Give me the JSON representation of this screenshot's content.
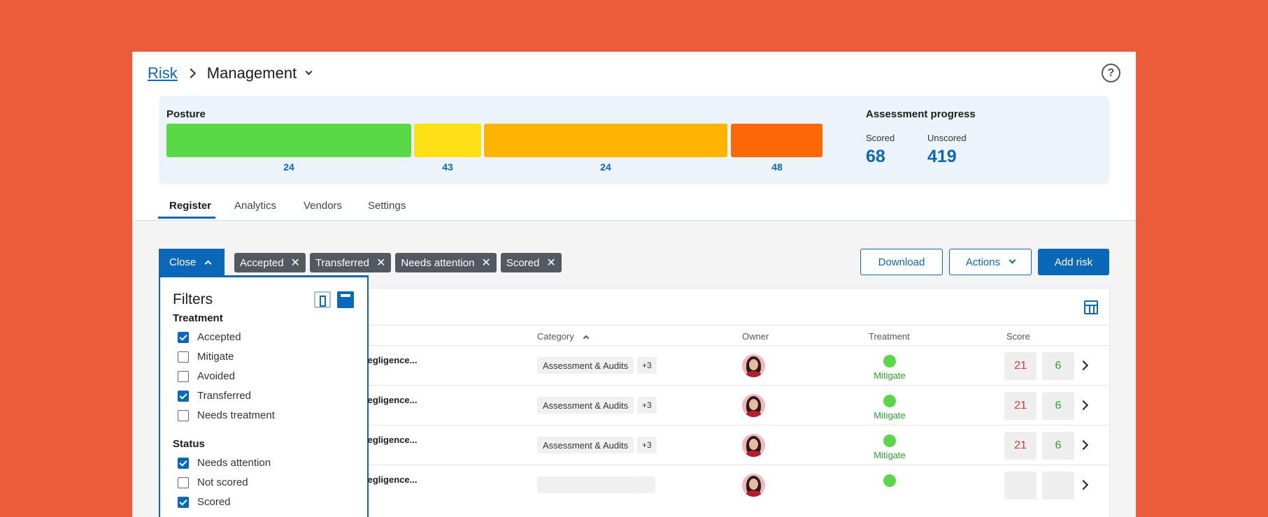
{
  "breadcrumb": {
    "parent": "Risk",
    "current": "Management"
  },
  "help_icon": "?",
  "posture": {
    "title": "Posture",
    "segments": [
      {
        "value": "24",
        "color": "#5ad946"
      },
      {
        "value": "43",
        "color": "#fde016"
      },
      {
        "value": "24",
        "color": "#feb401"
      },
      {
        "value": "48",
        "color": "#fe6706"
      }
    ]
  },
  "assessment": {
    "title": "Assessment progress",
    "scored_label": "Scored",
    "scored_value": "68",
    "unscored_label": "Unscored",
    "unscored_value": "419"
  },
  "tabs": [
    "Register",
    "Analytics",
    "Vendors",
    "Settings"
  ],
  "toolbar": {
    "close_label": "Close",
    "chips": [
      "Accepted",
      "Transferred",
      "Needs attention",
      "Scored"
    ],
    "chip_close": "✕",
    "download_label": "Download",
    "actions_label": "Actions",
    "add_risk_label": "Add risk"
  },
  "table": {
    "headers": {
      "category": "Category",
      "owner": "Owner",
      "treatment": "Treatment",
      "score": "Score"
    },
    "rows": [
      {
        "title": "oyee Negligence...",
        "category": "Assessment & Audits",
        "more": "+3",
        "treatment": "Mitigate",
        "score_a": "21",
        "score_b": "6"
      },
      {
        "title": "oyee Negligence...",
        "category": "Assessment & Audits",
        "more": "+3",
        "treatment": "Mitigate",
        "score_a": "21",
        "score_b": "6"
      },
      {
        "title": "oyee Negligence...",
        "category": "Assessment & Audits",
        "more": "+3",
        "treatment": "Mitigate",
        "score_a": "21",
        "score_b": "6"
      },
      {
        "title": "oyee Negligence...",
        "category": "",
        "more": "",
        "treatment": "",
        "score_a": "",
        "score_b": ""
      }
    ]
  },
  "filters": {
    "title": "Filters",
    "treatment_label": "Treatment",
    "treatment_items": [
      {
        "label": "Accepted",
        "checked": true
      },
      {
        "label": "Mitigate",
        "checked": false
      },
      {
        "label": "Avoided",
        "checked": false
      },
      {
        "label": "Transferred",
        "checked": true
      },
      {
        "label": "Needs treatment",
        "checked": false
      }
    ],
    "status_label": "Status",
    "status_items": [
      {
        "label": "Needs attention",
        "checked": true
      },
      {
        "label": "Not scored",
        "checked": false
      },
      {
        "label": "Scored",
        "checked": true
      }
    ]
  }
}
